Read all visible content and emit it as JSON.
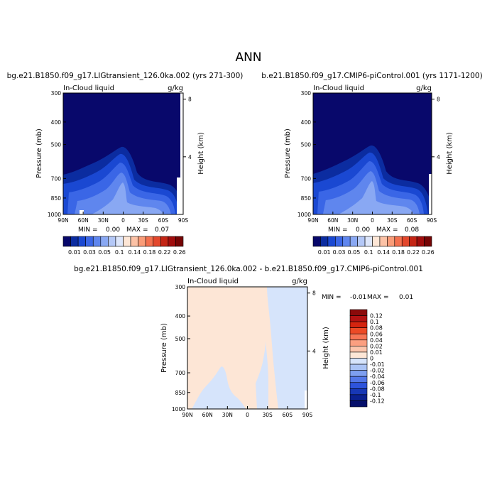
{
  "page_title": "ANN",
  "panels": [
    {
      "id": "case1",
      "title": "bg.e21.B1850.f09_g17.LIGtransient_126.0ka.002 (yrs 271-300)",
      "variable": "In-Cloud liquid",
      "units": "g/kg",
      "ylabel_left": "Pressure (mb)",
      "ylabel_right": "Height (km)",
      "min_label": "MIN =",
      "min_value": "0.00",
      "max_label": "MAX =",
      "max_value": "0.07"
    },
    {
      "id": "case2",
      "title": "b.e21.B1850.f09_g17.CMIP6-piControl.001 (yrs 1171-1200)",
      "variable": "In-Cloud liquid",
      "units": "g/kg",
      "ylabel_left": "Pressure (mb)",
      "ylabel_right": "Height (km)",
      "min_label": "MIN =",
      "min_value": "0.00",
      "max_label": "MAX =",
      "max_value": "0.08"
    },
    {
      "id": "diff",
      "title": "bg.e21.B1850.f09_g17.LIGtransient_126.0ka.002 - b.e21.B1850.f09_g17.CMIP6-piControl.001",
      "variable": "In-Cloud liquid",
      "units": "g/kg",
      "ylabel_left": "Pressure (mb)",
      "ylabel_right": "Height (km)",
      "min_label": "MIN =",
      "min_value": "-0.01",
      "max_label": "MAX =",
      "max_value": "0.01"
    }
  ],
  "chart_data": {
    "type": "heatmap",
    "x_ticks": [
      "90N",
      "60N",
      "30N",
      "0",
      "30S",
      "60S",
      "90S"
    ],
    "pressure_ticks": [
      300,
      400,
      500,
      700,
      850,
      1000
    ],
    "height_ticks": [
      8,
      4
    ],
    "xlim": [
      90,
      -90
    ],
    "ylim": [
      1000,
      300
    ],
    "y_scale": "log-pressure",
    "abs_colorbar": {
      "labels": [
        "0.01",
        "0.03",
        "0.05",
        "0.1",
        "0.14",
        "0.18",
        "0.22",
        "0.26"
      ],
      "colors": [
        "#08086b",
        "#0b2ca0",
        "#1a48d2",
        "#3a66e6",
        "#5f86ee",
        "#89a8f3",
        "#b4c8f7",
        "#dde6fb",
        "#fde6d6",
        "#fcc2a6",
        "#fa9c78",
        "#f3704e",
        "#e3472c",
        "#c42515",
        "#a00d0d",
        "#760505"
      ]
    },
    "diff_colorbar": {
      "labels": [
        "0.12",
        "0.1",
        "0.08",
        "0.06",
        "0.04",
        "0.02",
        "0.01",
        "0",
        "-0.01",
        "-0.02",
        "-0.04",
        "-0.06",
        "-0.08",
        "-0.1",
        "-0.12"
      ],
      "colors": [
        "#8b0a0a",
        "#b31212",
        "#d4240f",
        "#ec4a26",
        "#f77656",
        "#fb9f80",
        "#fcc5ac",
        "#fde6d6",
        "#d6e4fb",
        "#abc4f5",
        "#7e9ff0",
        "#5377e8",
        "#2e54dc",
        "#1737b5",
        "#0a2090",
        "#06106b"
      ]
    },
    "diff_field": {
      "positive_fill": "#fde6d6",
      "negative_fill": "#d6e4fb",
      "max_value": 0.01,
      "min_value": -0.01
    }
  }
}
